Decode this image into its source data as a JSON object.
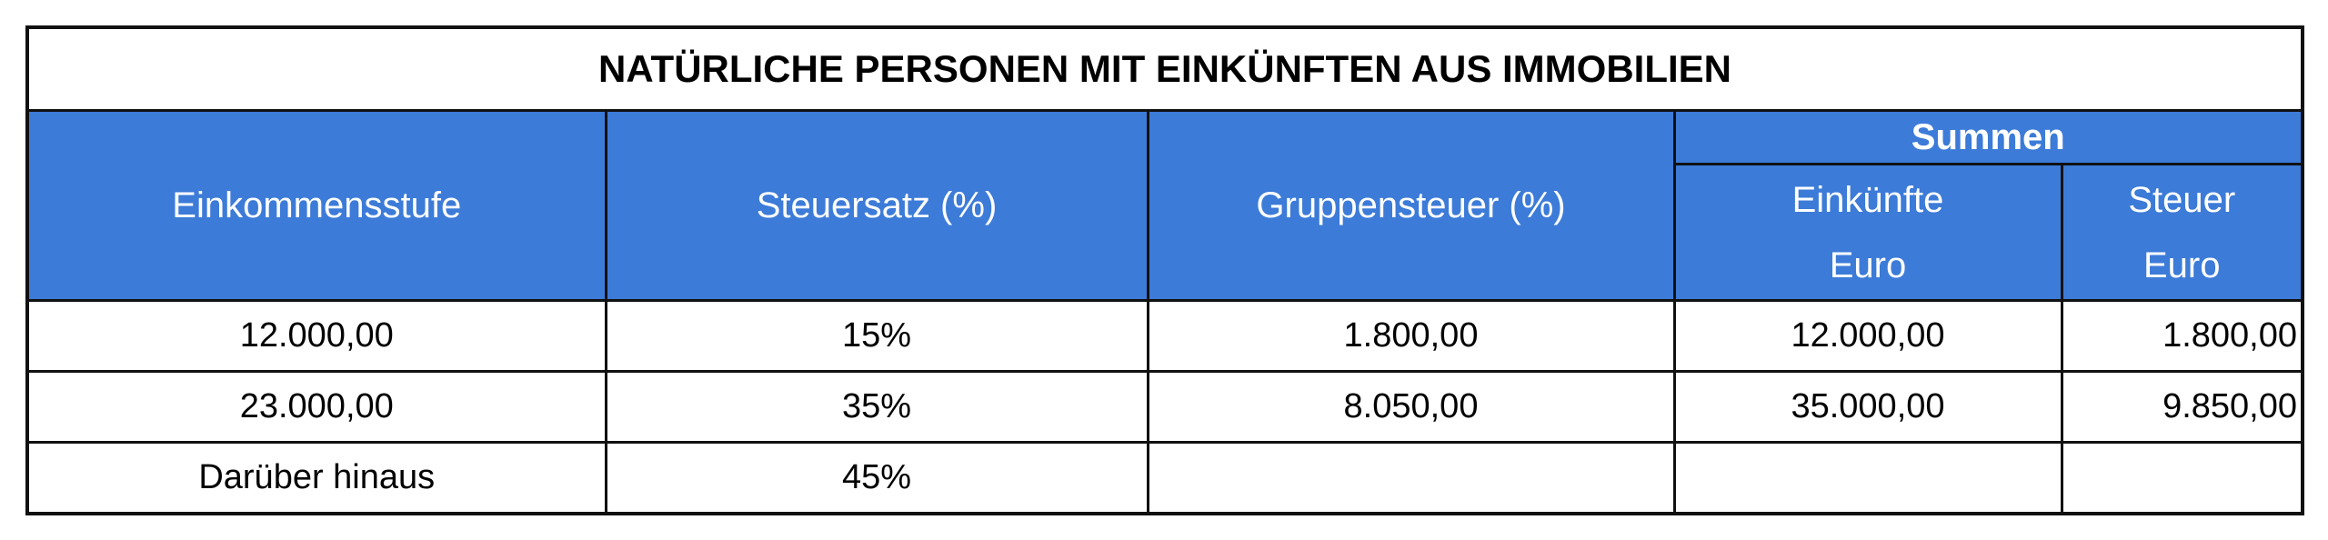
{
  "title": "NATÜRLICHE PERSONEN MIT EINKÜNFTEN AUS IMMOBILIEN",
  "colors": {
    "header_bg": "#3c7bd8",
    "header_text": "#ffffff",
    "border": "#111111"
  },
  "headers": {
    "income_level": "Einkommensstufe",
    "tax_rate": "Steuersatz (%)",
    "group_tax": "Gruppensteuer (%)",
    "sums": "Summen",
    "income_line1": "Einkünfte",
    "income_line2": "Euro",
    "tax_line1": "Steuer",
    "tax_line2": "Euro"
  },
  "rows": [
    {
      "income_level": "12.000,00",
      "tax_rate": "15%",
      "group_tax": "1.800,00",
      "sum_income": "12.000,00",
      "sum_tax": "1.800,00"
    },
    {
      "income_level": "23.000,00",
      "tax_rate": "35%",
      "group_tax": "8.050,00",
      "sum_income": "35.000,00",
      "sum_tax": "9.850,00"
    },
    {
      "income_level": "Darüber hinaus",
      "tax_rate": "45%",
      "group_tax": "",
      "sum_income": "",
      "sum_tax": ""
    }
  ]
}
